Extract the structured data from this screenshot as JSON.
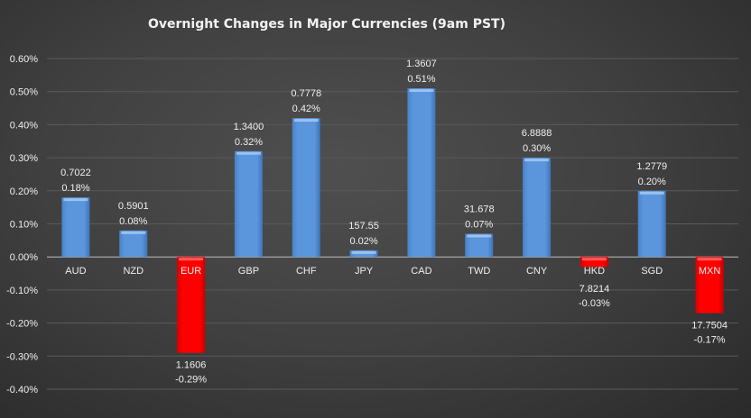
{
  "chart_data": {
    "type": "bar",
    "title": "Overnight Changes in Major Currencies (9am PST)",
    "xlabel": "",
    "ylabel": "",
    "categories": [
      "AUD",
      "NZD",
      "EUR",
      "GBP",
      "CHF",
      "JPY",
      "CAD",
      "TWD",
      "CNY",
      "HKD",
      "SGD",
      "MXN"
    ],
    "values": [
      0.18,
      0.08,
      -0.29,
      0.32,
      0.42,
      0.02,
      0.51,
      0.07,
      0.3,
      -0.03,
      0.2,
      -0.17
    ],
    "rates": [
      "0.7022",
      "0.5901",
      "1.1606",
      "1.3400",
      "0.7778",
      "157.55",
      "1.3607",
      "31.678",
      "6.8888",
      "7.8214",
      "1.2779",
      "17.7504"
    ],
    "value_labels": [
      "0.18%",
      "0.08%",
      "-0.29%",
      "0.32%",
      "0.42%",
      "0.02%",
      "0.51%",
      "0.07%",
      "0.30%",
      "-0.03%",
      "0.20%",
      "-0.17%"
    ],
    "ylim": [
      -0.4,
      0.6
    ],
    "yticks": [
      0.6,
      0.5,
      0.4,
      0.3,
      0.2,
      0.1,
      0.0,
      -0.1,
      -0.2,
      -0.3,
      -0.4
    ],
    "ytick_labels": [
      "0.60%",
      "0.50%",
      "0.40%",
      "0.30%",
      "0.20%",
      "0.10%",
      "0.00%",
      "-0.10%",
      "-0.20%",
      "-0.30%",
      "-0.40%"
    ],
    "grid": true,
    "legend": "none",
    "colors": {
      "positive": "#5b96dc",
      "negative": "#ff0000",
      "text": "#f0f0f0",
      "grid": "#5a5a5a"
    }
  }
}
